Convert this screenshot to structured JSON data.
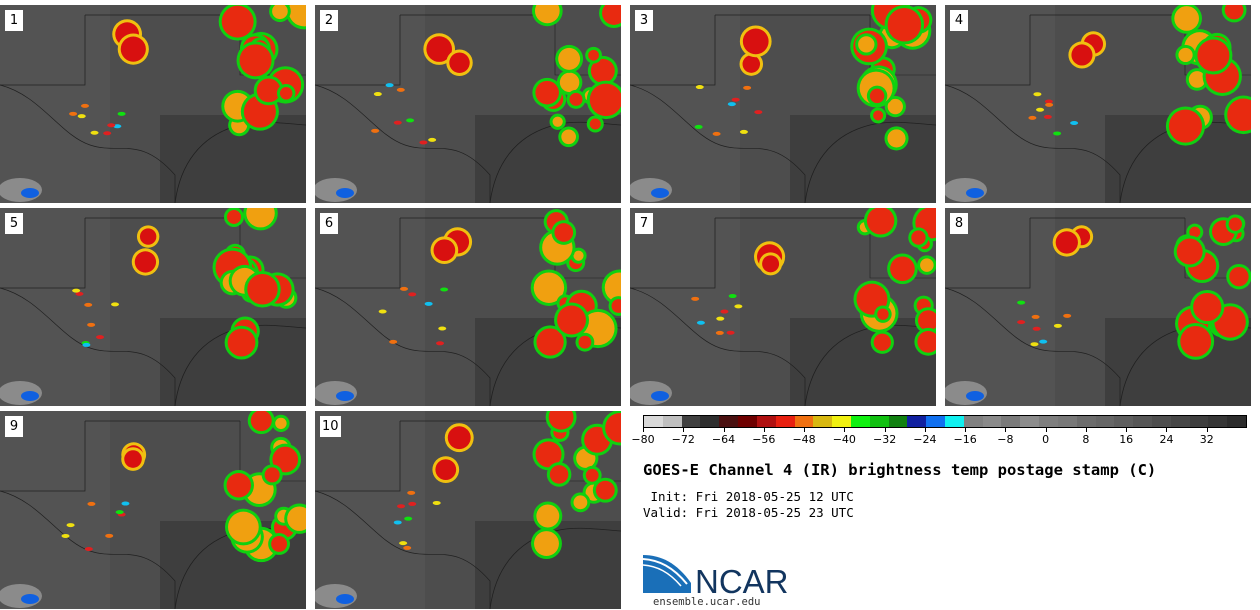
{
  "panels": [
    {
      "label": "1"
    },
    {
      "label": "2"
    },
    {
      "label": "3"
    },
    {
      "label": "4"
    },
    {
      "label": "5"
    },
    {
      "label": "6"
    },
    {
      "label": "7"
    },
    {
      "label": "8"
    },
    {
      "label": "9"
    },
    {
      "label": "10"
    }
  ],
  "colorbar": {
    "colors": [
      "#d9d9d9",
      "#bfbfbf",
      "#404040",
      "#2e2e2e",
      "#4a1010",
      "#6e0000",
      "#b01010",
      "#e82010",
      "#f07010",
      "#d8b810",
      "#f0f010",
      "#10f010",
      "#10c010",
      "#108010",
      "#1020a0",
      "#1070f0",
      "#10f0f0",
      "#808080",
      "#8a8a8a",
      "#7a7a7a",
      "#8c8c8c",
      "#7e7e7e",
      "#787878",
      "#6c6c6c",
      "#666666",
      "#5e5e5e",
      "#565656",
      "#4e4e4e",
      "#464646",
      "#3e3e3e",
      "#363636",
      "#2c2c2c"
    ],
    "ticks": [
      "−80",
      "−72",
      "−64",
      "−56",
      "−48",
      "−40",
      "−32",
      "−24",
      "−16",
      "−8",
      "0",
      "8",
      "16",
      "24",
      "32"
    ]
  },
  "title": "GOES-E Channel 4 (IR) brightness temp postage stamp (C)",
  "init": " Init: Fri 2018-05-25 12 UTC",
  "valid": "Valid: Fri 2018-05-25 23 UTC",
  "logo_text": "NCAR",
  "logo_url": "ensemble.ucar.edu"
}
